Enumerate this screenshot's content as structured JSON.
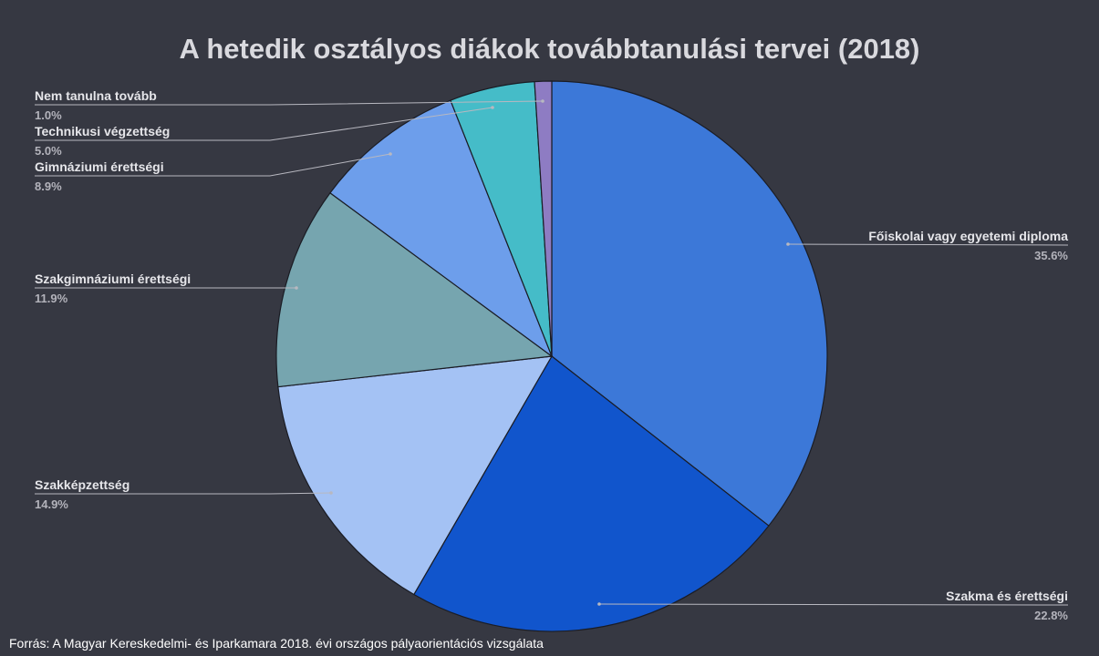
{
  "chart_data": {
    "type": "pie",
    "title": "A hetedik osztályos diákok továbbtanulási tervei (2018)",
    "slices": [
      {
        "label": "Főiskolai vagy egyetemi diploma",
        "value": 35.6,
        "display": "35.6%",
        "color": "#3c78d8"
      },
      {
        "label": "Szakma és érettségi",
        "value": 22.8,
        "display": "22.8%",
        "color": "#1155cc"
      },
      {
        "label": "Szakképzettség",
        "value": 14.9,
        "display": "14.9%",
        "color": "#a4c2f4"
      },
      {
        "label": "Szakgimnáziumi érettségi",
        "value": 11.9,
        "display": "11.9%",
        "color": "#76a5af"
      },
      {
        "label": "Gimnáziumi érettségi",
        "value": 8.9,
        "display": "8.9%",
        "color": "#6d9eeb"
      },
      {
        "label": "Technikusi végzettség",
        "value": 5.0,
        "display": "5.0%",
        "color": "#45bcc8"
      },
      {
        "label": "Nem tanulna tovább",
        "value": 1.0,
        "display": "1.0%",
        "color": "#8e7cc3"
      }
    ],
    "legend": "none",
    "labels": "outside-with-leader-lines"
  },
  "footer": {
    "source": "Forrás: A Magyar  Kereskedelmi- és Iparkamara 2018. évi országos pályaorientációs vizsgálata"
  },
  "colors": {
    "background": "#363842",
    "title": "#d9d9de",
    "leader_line": "#b8b8c0"
  }
}
